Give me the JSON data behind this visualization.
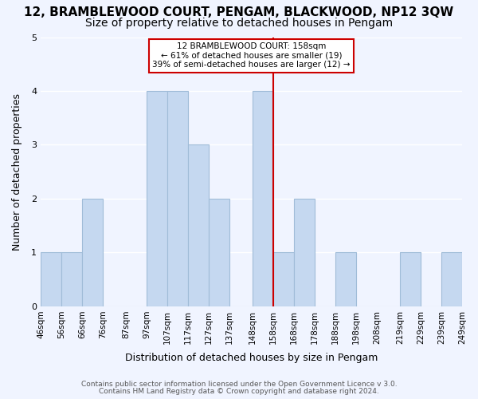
{
  "title": "12, BRAMBLEWOOD COURT, PENGAM, BLACKWOOD, NP12 3QW",
  "subtitle": "Size of property relative to detached houses in Pengam",
  "xlabel": "Distribution of detached houses by size in Pengam",
  "ylabel": "Number of detached properties",
  "bin_edges": [
    46,
    56,
    66,
    76,
    87,
    97,
    107,
    117,
    127,
    137,
    148,
    158,
    168,
    178,
    188,
    198,
    208,
    219,
    229,
    239,
    249
  ],
  "bar_heights": [
    1,
    1,
    2,
    0,
    0,
    4,
    4,
    3,
    2,
    0,
    4,
    1,
    2,
    0,
    1,
    0,
    0,
    1,
    0,
    1
  ],
  "tick_labels": [
    "46sqm",
    "56sqm",
    "66sqm",
    "76sqm",
    "87sqm",
    "97sqm",
    "107sqm",
    "117sqm",
    "127sqm",
    "137sqm",
    "148sqm",
    "158sqm",
    "168sqm",
    "178sqm",
    "188sqm",
    "198sqm",
    "208sqm",
    "219sqm",
    "229sqm",
    "239sqm",
    "249sqm"
  ],
  "bar_color": "#c5d8f0",
  "bar_edge_color": "#a0bcd8",
  "reference_line_x": 158,
  "reference_line_color": "#cc0000",
  "annotation_title": "12 BRAMBLEWOOD COURT: 158sqm",
  "annotation_line1": "← 61% of detached houses are smaller (19)",
  "annotation_line2": "39% of semi-detached houses are larger (12) →",
  "annotation_box_edge_color": "#cc0000",
  "ylim": [
    0,
    5
  ],
  "yticks": [
    0,
    1,
    2,
    3,
    4,
    5
  ],
  "background_color": "#f0f4ff",
  "footer1": "Contains HM Land Registry data © Crown copyright and database right 2024.",
  "footer2": "Contains public sector information licensed under the Open Government Licence v 3.0.",
  "title_fontsize": 11,
  "subtitle_fontsize": 10,
  "axis_label_fontsize": 9,
  "tick_fontsize": 7.5,
  "footer_fontsize": 6.5
}
